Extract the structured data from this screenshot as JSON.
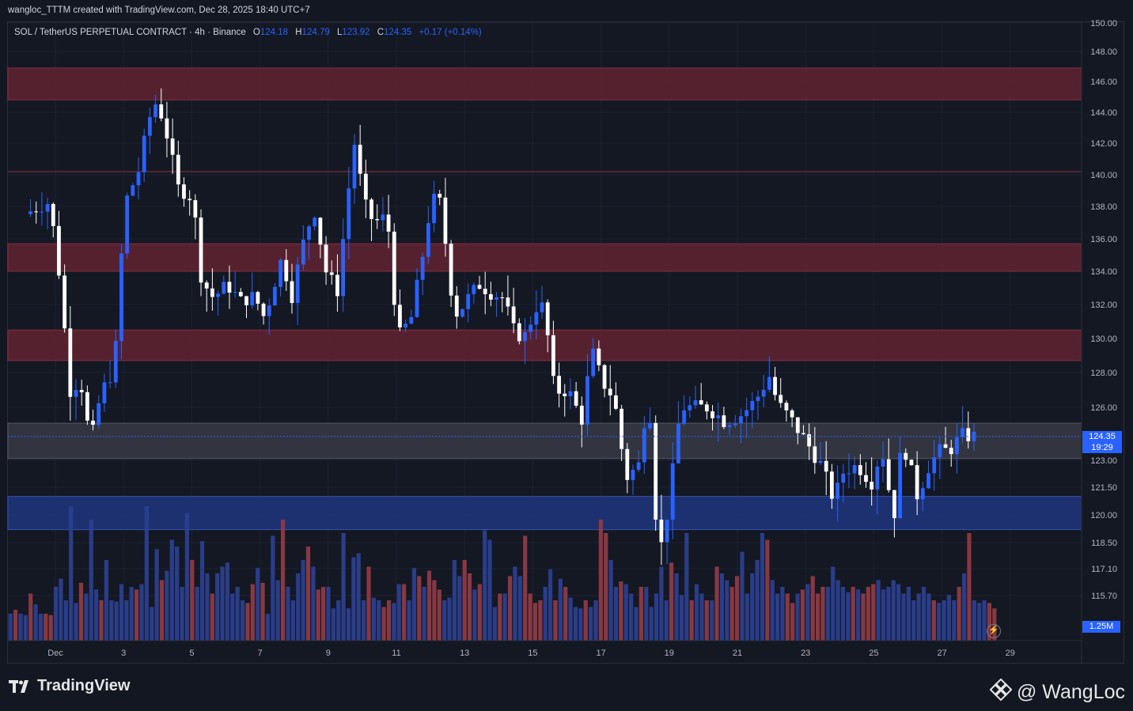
{
  "header": {
    "title": "wangloc_TTTM created with TradingView.com, Dec 28, 2025 18:40 UTC+7"
  },
  "legend": {
    "symbol": "SOL / TetherUS PERPETUAL CONTRACT · 4h · Binance",
    "o_label": "O",
    "o_value": "124.18",
    "h_label": "H",
    "h_value": "124.79",
    "l_label": "L",
    "l_value": "123.92",
    "c_label": "C",
    "c_value": "124.35",
    "change": "+0.17 (+0.14%)"
  },
  "price_tag": {
    "price": "124.35",
    "countdown": "19:29"
  },
  "volume_tag": "1.25M",
  "footer": {
    "brand": "TradingView",
    "author": "@ WangLoc"
  },
  "colors": {
    "background": "#131722",
    "bull": "#2962ff",
    "bear": "#ffffff",
    "vol_bull": "#2b3f8f",
    "vol_bear": "#8e3a44",
    "resistance_zone": "#5c2231",
    "support_zone": "#1e3478",
    "current_zone": "#353843"
  },
  "chart_data": {
    "type": "candlestick",
    "title": "SOL / TetherUS PERPETUAL CONTRACT · 4h · Binance",
    "y_axis": {
      "ticks": [
        "150.00",
        "148.00",
        "146.00",
        "144.00",
        "142.00",
        "140.00",
        "138.00",
        "136.00",
        "134.00",
        "132.00",
        "130.00",
        "128.00",
        "126.00",
        "123.00",
        "121.50",
        "120.00",
        "118.50",
        "117.10",
        "115.70"
      ],
      "tick_values": [
        150,
        148,
        146,
        144,
        142,
        140,
        138,
        136,
        134,
        132,
        130,
        128,
        126,
        123,
        121.5,
        120,
        118.5,
        117.1,
        115.7
      ]
    },
    "x_axis": {
      "ticks": [
        "Dec",
        "3",
        "5",
        "7",
        "9",
        "11",
        "13",
        "15",
        "17",
        "19",
        "21",
        "23",
        "25",
        "27",
        "29"
      ],
      "tick_days": [
        1,
        3,
        5,
        7,
        9,
        11,
        13,
        15,
        17,
        19,
        21,
        23,
        25,
        27,
        29
      ]
    },
    "zones": [
      {
        "kind": "resistance",
        "low": 144.8,
        "high": 146.9
      },
      {
        "kind": "resistance",
        "low": 134.0,
        "high": 135.7
      },
      {
        "kind": "resistance",
        "low": 128.7,
        "high": 130.5
      },
      {
        "kind": "current",
        "low": 123.1,
        "high": 125.1
      },
      {
        "kind": "support",
        "low": 119.2,
        "high": 121.0
      }
    ],
    "levels": [
      140.2
    ],
    "current_price": 124.35,
    "keypoints": [
      [
        0.25,
        137.5
      ],
      [
        1.0,
        138.3
      ],
      [
        1.3,
        133.5
      ],
      [
        1.6,
        127.0
      ],
      [
        1.9,
        127.6
      ],
      [
        2.2,
        123.9
      ],
      [
        2.5,
        126.8
      ],
      [
        2.9,
        128.3
      ],
      [
        3.2,
        138.2
      ],
      [
        3.6,
        140.2
      ],
      [
        3.9,
        143.5
      ],
      [
        4.15,
        144.8
      ],
      [
        4.5,
        142.0
      ],
      [
        4.75,
        139.2
      ],
      [
        5.2,
        138.5
      ],
      [
        5.45,
        133.5
      ],
      [
        5.8,
        132.4
      ],
      [
        6.2,
        133.2
      ],
      [
        6.6,
        132.2
      ],
      [
        7.0,
        132.5
      ],
      [
        7.3,
        131.2
      ],
      [
        7.8,
        134.8
      ],
      [
        8.1,
        132.5
      ],
      [
        8.4,
        135.5
      ],
      [
        8.75,
        137.9
      ],
      [
        9.1,
        134.0
      ],
      [
        9.45,
        132.8
      ],
      [
        9.7,
        138.0
      ],
      [
        9.95,
        142.2
      ],
      [
        10.2,
        138.3
      ],
      [
        10.5,
        137.0
      ],
      [
        10.9,
        137.4
      ],
      [
        11.2,
        130.0
      ],
      [
        11.6,
        131.2
      ],
      [
        11.9,
        134.5
      ],
      [
        12.2,
        138.5
      ],
      [
        12.5,
        138.2
      ],
      [
        12.7,
        133.5
      ],
      [
        12.95,
        131.4
      ],
      [
        13.3,
        132.5
      ],
      [
        13.6,
        133.2
      ],
      [
        13.95,
        132.7
      ],
      [
        14.3,
        132.4
      ],
      [
        14.6,
        130.5
      ],
      [
        14.9,
        130.0
      ],
      [
        15.3,
        132.0
      ],
      [
        15.5,
        131.8
      ],
      [
        15.8,
        126.9
      ],
      [
        16.2,
        127.0
      ],
      [
        16.6,
        125.3
      ],
      [
        16.9,
        129.3
      ],
      [
        17.2,
        127.5
      ],
      [
        17.55,
        126.5
      ],
      [
        17.9,
        122.0
      ],
      [
        18.3,
        122.8
      ],
      [
        18.55,
        127.3
      ],
      [
        18.85,
        117.5
      ],
      [
        19.15,
        120.5
      ],
      [
        19.5,
        126.0
      ],
      [
        19.9,
        126.0
      ],
      [
        20.3,
        126.0
      ],
      [
        20.8,
        125.2
      ],
      [
        21.3,
        125.6
      ],
      [
        21.7,
        126.4
      ],
      [
        22.1,
        127.8
      ],
      [
        22.35,
        126.2
      ],
      [
        22.7,
        125.4
      ],
      [
        23.2,
        124.0
      ],
      [
        23.6,
        122.8
      ],
      [
        24.0,
        120.8
      ],
      [
        24.3,
        122.5
      ],
      [
        24.7,
        122.7
      ],
      [
        25.1,
        121.8
      ],
      [
        25.4,
        123.7
      ],
      [
        25.75,
        119.8
      ],
      [
        26.0,
        124.2
      ],
      [
        26.45,
        121.0
      ],
      [
        26.8,
        122.8
      ],
      [
        27.1,
        123.5
      ],
      [
        27.4,
        123.6
      ],
      [
        27.75,
        124.4
      ],
      [
        28.1,
        124.35
      ]
    ],
    "volume": {
      "scale_note": "relative",
      "bars": [
        20,
        23,
        20,
        19,
        35,
        27,
        20,
        20,
        19,
        40,
        46,
        30,
        100,
        28,
        43,
        35,
        90,
        38,
        30,
        60,
        30,
        29,
        42,
        30,
        40,
        38,
        42,
        100,
        25,
        68,
        45,
        52,
        75,
        70,
        40,
        95,
        60,
        40,
        74,
        50,
        35,
        50,
        55,
        58,
        35,
        40,
        30,
        28,
        42,
        54,
        43,
        20,
        78,
        45,
        90,
        40,
        30,
        50,
        60,
        70,
        55,
        38,
        40,
        40,
        24,
        30,
        80,
        24,
        62,
        65,
        30,
        55,
        32,
        30,
        25,
        30,
        28,
        42,
        42,
        30,
        54,
        48,
        40,
        52,
        45,
        38,
        30,
        32,
        60,
        48,
        60,
        50,
        38,
        42,
        82,
        75,
        25,
        35,
        35,
        48,
        55,
        48,
        78,
        35,
        28,
        30,
        40,
        53,
        30,
        46,
        40,
        32,
        25,
        24,
        30,
        25,
        30,
        90,
        80,
        60,
        40,
        44,
        42,
        35,
        25,
        40,
        40,
        25,
        35,
        55,
        30,
        58,
        50,
        34,
        80,
        30,
        42,
        35,
        30,
        30,
        55,
        50,
        45,
        40,
        48,
        66,
        35,
        50,
        60,
        80,
        75,
        45,
        35,
        40,
        35,
        28,
        35,
        38,
        42,
        48,
        35,
        40,
        40,
        55,
        45,
        40,
        36,
        40,
        38,
        35,
        40,
        42,
        45,
        38,
        40,
        45,
        42,
        35,
        40,
        30,
        35,
        40,
        35,
        30,
        28,
        30,
        34,
        30,
        40,
        50,
        80,
        30,
        28,
        30,
        28,
        24
      ]
    }
  }
}
